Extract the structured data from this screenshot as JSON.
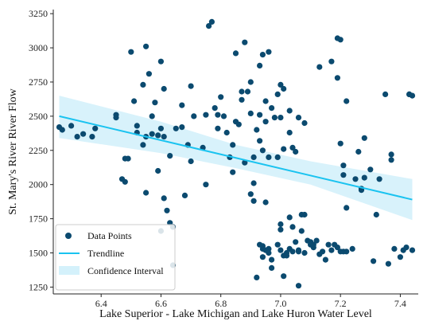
{
  "chart_data": {
    "type": "scatter",
    "title": "",
    "xlabel": "Lake Superior - Lake Michigan and Lake Huron Water Level",
    "ylabel": "St. Mary's River River Flow",
    "xlim": [
      6.24,
      7.46
    ],
    "ylim": [
      1200,
      3280
    ],
    "x_ticks": [
      6.4,
      6.6,
      6.8,
      7.0,
      7.2,
      7.4
    ],
    "x_tick_labels": [
      "6.4",
      "6.6",
      "6.8",
      "7.0",
      "7.2",
      "7.4"
    ],
    "y_ticks": [
      1250,
      1500,
      1750,
      2000,
      2250,
      2500,
      2750,
      3000,
      3250
    ],
    "y_tick_labels": [
      "1250",
      "1500",
      "1750",
      "2000",
      "2250",
      "2500",
      "2750",
      "3000",
      "3250"
    ],
    "grid": false,
    "legend_position": "bottom-left",
    "legend": [
      "Data Points",
      "Trendline",
      "Confidence Interval"
    ],
    "colors": {
      "points": "#0b4a6f",
      "trendline": "#1ac3f0",
      "confidence": "#d4f1fb"
    },
    "series": [
      {
        "name": "Data Points",
        "type": "scatter",
        "points": [
          [
            6.26,
            2420
          ],
          [
            6.27,
            2400
          ],
          [
            6.3,
            2430
          ],
          [
            6.32,
            2350
          ],
          [
            6.34,
            2370
          ],
          [
            6.37,
            2350
          ],
          [
            6.38,
            2410
          ],
          [
            6.45,
            2490
          ],
          [
            6.45,
            2510
          ],
          [
            6.47,
            2040
          ],
          [
            6.48,
            2020
          ],
          [
            6.48,
            2190
          ],
          [
            6.49,
            2190
          ],
          [
            6.5,
            2970
          ],
          [
            6.51,
            2610
          ],
          [
            6.52,
            2380
          ],
          [
            6.52,
            2430
          ],
          [
            6.54,
            2290
          ],
          [
            6.54,
            2730
          ],
          [
            6.55,
            2350
          ],
          [
            6.55,
            3010
          ],
          [
            6.55,
            1940
          ],
          [
            6.56,
            2810
          ],
          [
            6.57,
            2500
          ],
          [
            6.57,
            2370
          ],
          [
            6.58,
            2600
          ],
          [
            6.59,
            2360
          ],
          [
            6.59,
            2100
          ],
          [
            6.6,
            2410
          ],
          [
            6.6,
            2900
          ],
          [
            6.6,
            1660
          ],
          [
            6.61,
            2700
          ],
          [
            6.61,
            2350
          ],
          [
            6.61,
            1900
          ],
          [
            6.62,
            1810
          ],
          [
            6.63,
            1720
          ],
          [
            6.63,
            2210
          ],
          [
            6.64,
            1410
          ],
          [
            6.64,
            1690
          ],
          [
            6.65,
            2410
          ],
          [
            6.67,
            2580
          ],
          [
            6.67,
            2420
          ],
          [
            6.68,
            1920
          ],
          [
            6.69,
            2290
          ],
          [
            6.7,
            2720
          ],
          [
            6.7,
            2170
          ],
          [
            6.71,
            2500
          ],
          [
            6.74,
            2270
          ],
          [
            6.75,
            2510
          ],
          [
            6.75,
            2000
          ],
          [
            6.76,
            3160
          ],
          [
            6.77,
            3190
          ],
          [
            6.78,
            2560
          ],
          [
            6.79,
            2510
          ],
          [
            6.79,
            2410
          ],
          [
            6.8,
            2640
          ],
          [
            6.81,
            2500
          ],
          [
            6.82,
            2380
          ],
          [
            6.83,
            2200
          ],
          [
            6.84,
            2290
          ],
          [
            6.84,
            2090
          ],
          [
            6.85,
            2960
          ],
          [
            6.85,
            2460
          ],
          [
            6.86,
            2440
          ],
          [
            6.87,
            2680
          ],
          [
            6.87,
            2620
          ],
          [
            6.88,
            3040
          ],
          [
            6.88,
            2160
          ],
          [
            6.89,
            2680
          ],
          [
            6.9,
            2750
          ],
          [
            6.9,
            2520
          ],
          [
            6.9,
            1930
          ],
          [
            6.91,
            1880
          ],
          [
            6.91,
            2010
          ],
          [
            6.91,
            2200
          ],
          [
            6.92,
            2400
          ],
          [
            6.92,
            1320
          ],
          [
            6.93,
            2870
          ],
          [
            6.93,
            2320
          ],
          [
            6.93,
            2510
          ],
          [
            6.93,
            1560
          ],
          [
            6.94,
            2950
          ],
          [
            6.94,
            2250
          ],
          [
            6.94,
            1530
          ],
          [
            6.94,
            1470
          ],
          [
            6.94,
            1550
          ],
          [
            6.95,
            2610
          ],
          [
            6.95,
            2460
          ],
          [
            6.95,
            1870
          ],
          [
            6.95,
            1520
          ],
          [
            6.96,
            2970
          ],
          [
            6.96,
            2200
          ],
          [
            6.96,
            1530
          ],
          [
            6.96,
            1500
          ],
          [
            6.97,
            1390
          ],
          [
            6.97,
            1450
          ],
          [
            6.97,
            2560
          ],
          [
            6.98,
            2490
          ],
          [
            6.99,
            2660
          ],
          [
            6.99,
            2200
          ],
          [
            6.99,
            1560
          ],
          [
            7.0,
            2730
          ],
          [
            7.0,
            2490
          ],
          [
            7.0,
            1670
          ],
          [
            7.0,
            1710
          ],
          [
            7.0,
            1520
          ],
          [
            7.01,
            2260
          ],
          [
            7.01,
            1330
          ],
          [
            7.01,
            2700
          ],
          [
            7.01,
            1480
          ],
          [
            7.02,
            1500
          ],
          [
            7.02,
            1480
          ],
          [
            7.03,
            2540
          ],
          [
            7.03,
            2380
          ],
          [
            7.03,
            1760
          ],
          [
            7.03,
            1530
          ],
          [
            7.04,
            2270
          ],
          [
            7.04,
            1510
          ],
          [
            7.04,
            1690
          ],
          [
            7.05,
            2240
          ],
          [
            7.05,
            1580
          ],
          [
            7.06,
            2490
          ],
          [
            7.06,
            1260
          ],
          [
            7.06,
            1520
          ],
          [
            7.06,
            1510
          ],
          [
            7.07,
            1780
          ],
          [
            7.07,
            1660
          ],
          [
            7.08,
            2450
          ],
          [
            7.08,
            1780
          ],
          [
            7.08,
            1500
          ],
          [
            7.09,
            1590
          ],
          [
            7.1,
            1560
          ],
          [
            7.1,
            1580
          ],
          [
            7.11,
            1540
          ],
          [
            7.11,
            1560
          ],
          [
            7.12,
            1590
          ],
          [
            7.13,
            2860
          ],
          [
            7.13,
            1490
          ],
          [
            7.14,
            1510
          ],
          [
            7.15,
            1450
          ],
          [
            7.16,
            1560
          ],
          [
            7.17,
            2900
          ],
          [
            7.17,
            1520
          ],
          [
            7.18,
            1560
          ],
          [
            7.19,
            2780
          ],
          [
            7.19,
            3070
          ],
          [
            7.19,
            1540
          ],
          [
            7.2,
            3060
          ],
          [
            7.2,
            2300
          ],
          [
            7.2,
            1510
          ],
          [
            7.21,
            2140
          ],
          [
            7.21,
            1510
          ],
          [
            7.21,
            2070
          ],
          [
            7.22,
            2610
          ],
          [
            7.22,
            1830
          ],
          [
            7.22,
            1510
          ],
          [
            7.24,
            1530
          ],
          [
            7.25,
            2040
          ],
          [
            7.26,
            2240
          ],
          [
            7.27,
            1960
          ],
          [
            7.27,
            1970
          ],
          [
            7.28,
            2050
          ],
          [
            7.28,
            2340
          ],
          [
            7.3,
            2110
          ],
          [
            7.31,
            1440
          ],
          [
            7.32,
            1780
          ],
          [
            7.33,
            2040
          ],
          [
            7.35,
            2660
          ],
          [
            7.36,
            1420
          ],
          [
            7.37,
            2180
          ],
          [
            7.37,
            2220
          ],
          [
            7.38,
            1530
          ],
          [
            7.4,
            1470
          ],
          [
            7.41,
            1520
          ],
          [
            7.42,
            1540
          ],
          [
            7.43,
            2660
          ],
          [
            7.43,
            2660
          ],
          [
            7.44,
            2650
          ],
          [
            7.44,
            1520
          ]
        ]
      },
      {
        "name": "Trendline",
        "type": "line",
        "points": [
          [
            6.26,
            2500
          ],
          [
            7.44,
            1890
          ]
        ]
      },
      {
        "name": "Confidence Interval",
        "type": "area",
        "x": [
          6.26,
          6.6,
          6.85,
          7.1,
          7.44
        ],
        "upper": [
          2650,
          2460,
          2290,
          2170,
          2040
        ],
        "lower": [
          2340,
          2230,
          2120,
          2000,
          1740
        ]
      }
    ]
  }
}
